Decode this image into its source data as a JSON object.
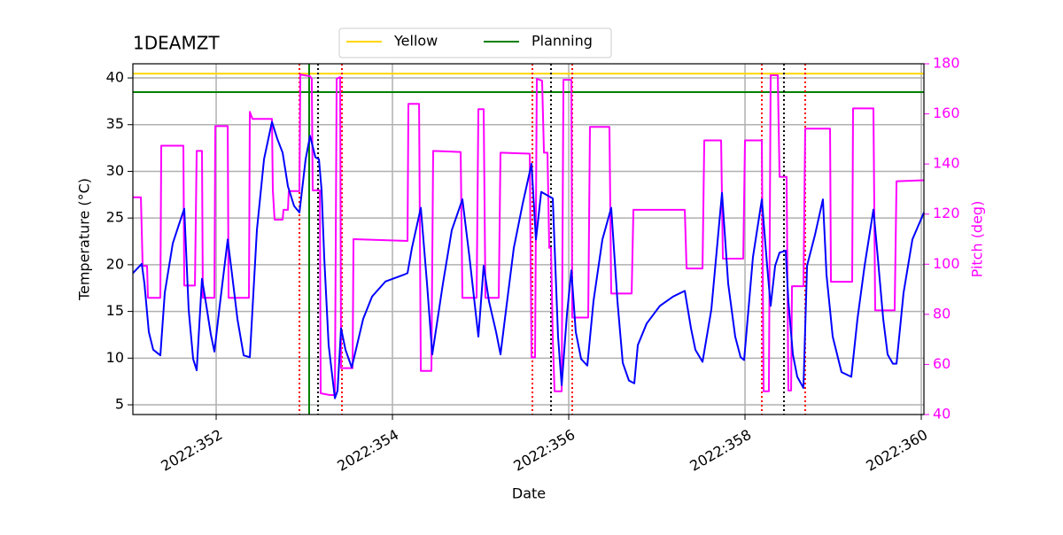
{
  "chart_data": {
    "type": "line",
    "title": "1DEAMZT",
    "x_label": "Date",
    "y_label": "Temperature (°C)",
    "y2_label": "Pitch (deg)",
    "y2_color": "#ff00ff",
    "xlim": [
      351.055,
      360.03
    ],
    "ylim": [
      3.96,
      41.52
    ],
    "y2lim": [
      40,
      180
    ],
    "xticks": [
      {
        "value": 352,
        "label": "2022:352"
      },
      {
        "value": 354,
        "label": "2022:354"
      },
      {
        "value": 356,
        "label": "2022:356"
      },
      {
        "value": 358,
        "label": "2022:358"
      },
      {
        "value": 360,
        "label": "2022:360"
      }
    ],
    "yticks": [
      5,
      10,
      15,
      20,
      25,
      30,
      35,
      40
    ],
    "y2ticks": [
      40,
      60,
      80,
      100,
      120,
      140,
      160,
      180
    ],
    "grid": true,
    "legend": "upper center",
    "hlines": [
      {
        "name": "Yellow",
        "color": "#ffd700",
        "value": 40.47
      },
      {
        "name": "Planning",
        "color": "#008000",
        "value": 38.48
      }
    ],
    "vlines": [
      {
        "color": "#ff0000",
        "style": "dotted",
        "x": [
          352.945,
          353.427,
          355.588,
          356.04,
          358.191,
          358.683
        ]
      },
      {
        "color": "#000000",
        "style": "dotted",
        "x": [
          353.156,
          355.799,
          358.442
        ]
      },
      {
        "color": "#008000",
        "style": "solid",
        "x": [
          353.055
        ]
      }
    ],
    "series": [
      {
        "color": "#ff00ff",
        "axis": "y2",
        "x": [
          351.055,
          351.146,
          351.166,
          351.216,
          351.226,
          351.367,
          351.377,
          351.628,
          351.638,
          351.759,
          351.779,
          351.839,
          351.849,
          351.98,
          351.99,
          352.131,
          352.141,
          352.372,
          352.382,
          352.412,
          352.442,
          352.633,
          352.643,
          352.663,
          352.754,
          352.764,
          352.814,
          352.824,
          352.945,
          352.955,
          353.065,
          353.085,
          353.095,
          353.176,
          353.186,
          353.286,
          353.347,
          353.367,
          353.407,
          353.417,
          353.548,
          353.558,
          354.171,
          354.181,
          354.302,
          354.322,
          354.442,
          354.462,
          354.774,
          354.794,
          354.955,
          354.975,
          355.035,
          355.055,
          355.206,
          355.226,
          355.558,
          355.578,
          355.618,
          355.638,
          355.698,
          355.719,
          355.759,
          355.779,
          355.799,
          355.819,
          355.839,
          355.92,
          355.94,
          356.03,
          356.04,
          356.221,
          356.241,
          356.462,
          356.482,
          356.714,
          356.734,
          357.317,
          357.337,
          357.518,
          357.538,
          357.729,
          357.749,
          357.98,
          358.0,
          358.191,
          358.211,
          358.271,
          358.291,
          358.372,
          358.392,
          358.472,
          358.492,
          358.523,
          358.533,
          358.663,
          358.683,
          358.965,
          358.975,
          359.216,
          359.226,
          359.457,
          359.477,
          359.698,
          359.719,
          360.03
        ],
        "values": [
          126.7,
          126.7,
          99.3,
          99.3,
          86.6,
          86.6,
          147.3,
          147.3,
          91.5,
          91.5,
          145.2,
          145.2,
          86.6,
          86.6,
          155.1,
          155.1,
          86.6,
          86.6,
          160.8,
          158.0,
          158.0,
          158.0,
          129.5,
          117.8,
          117.8,
          121.7,
          121.7,
          129.2,
          129.2,
          175.7,
          175.0,
          174.0,
          129.5,
          129.5,
          48.5,
          47.8,
          47.8,
          174.0,
          174.7,
          58.5,
          58.5,
          110.0,
          109.3,
          164.0,
          164.0,
          57.4,
          57.4,
          145.2,
          144.8,
          86.6,
          86.6,
          161.9,
          161.9,
          86.6,
          86.6,
          144.5,
          144.1,
          62.8,
          62.8,
          174.0,
          173.2,
          144.5,
          144.5,
          106.5,
          106.5,
          70.9,
          49.3,
          49.3,
          173.6,
          173.6,
          78.7,
          78.7,
          154.8,
          154.8,
          88.3,
          88.3,
          121.7,
          121.7,
          98.3,
          98.3,
          149.4,
          149.4,
          102.2,
          102.2,
          149.4,
          149.4,
          49.3,
          49.3,
          175.4,
          175.4,
          134.9,
          134.9,
          49.6,
          49.6,
          91.2,
          91.2,
          154.1,
          154.1,
          93.0,
          93.0,
          162.2,
          162.2,
          81.6,
          81.6,
          133.1,
          133.5
        ]
      },
      {
        "color": "#0000ff",
        "axis": "y",
        "x": [
          351.055,
          351.156,
          351.186,
          351.236,
          351.286,
          351.367,
          351.417,
          351.508,
          351.588,
          351.638,
          351.688,
          351.739,
          351.779,
          351.839,
          351.889,
          351.94,
          351.98,
          352.04,
          352.131,
          352.181,
          352.241,
          352.312,
          352.382,
          352.462,
          352.543,
          352.633,
          352.693,
          352.754,
          352.814,
          352.884,
          352.945,
          353.015,
          353.065,
          353.126,
          353.166,
          353.196,
          353.226,
          353.276,
          353.347,
          353.377,
          353.417,
          353.467,
          353.538,
          353.668,
          353.769,
          353.92,
          354.121,
          354.171,
          354.221,
          354.322,
          354.392,
          354.452,
          354.573,
          354.673,
          354.794,
          354.874,
          354.975,
          355.035,
          355.095,
          355.176,
          355.226,
          355.276,
          355.377,
          355.477,
          355.578,
          355.628,
          355.688,
          355.819,
          355.879,
          355.92,
          355.98,
          356.03,
          356.08,
          356.141,
          356.211,
          356.281,
          356.382,
          356.482,
          356.553,
          356.613,
          356.683,
          356.744,
          356.784,
          356.884,
          357.035,
          357.186,
          357.317,
          357.387,
          357.437,
          357.518,
          357.618,
          357.739,
          357.809,
          357.889,
          357.95,
          357.99,
          358.09,
          358.191,
          358.251,
          358.291,
          358.342,
          358.392,
          358.462,
          358.492,
          358.543,
          358.593,
          358.663,
          358.704,
          358.794,
          358.884,
          358.925,
          358.995,
          359.095,
          359.206,
          359.276,
          359.357,
          359.457,
          359.497,
          359.568,
          359.618,
          359.678,
          359.719,
          359.799,
          359.899,
          360.03
        ],
        "values": [
          19.1,
          20.1,
          18.0,
          12.8,
          10.9,
          10.3,
          17.0,
          22.3,
          24.6,
          26.0,
          15.2,
          9.9,
          8.7,
          18.5,
          15.6,
          12.5,
          10.7,
          15.6,
          22.7,
          18.9,
          14.2,
          10.3,
          10.1,
          23.7,
          31.3,
          35.3,
          33.5,
          32.0,
          28.4,
          26.3,
          25.6,
          31.3,
          33.8,
          31.5,
          31.3,
          28.0,
          20.8,
          11.4,
          5.7,
          6.5,
          13.2,
          10.9,
          9.0,
          14.2,
          16.6,
          18.2,
          18.9,
          19.1,
          21.8,
          26.1,
          18.0,
          10.4,
          18.0,
          23.7,
          27.0,
          20.8,
          12.3,
          19.9,
          16.1,
          12.8,
          10.4,
          14.2,
          21.8,
          26.5,
          30.8,
          22.7,
          27.8,
          27.1,
          12.3,
          7.1,
          14.7,
          19.4,
          12.8,
          9.9,
          9.2,
          16.1,
          22.7,
          26.1,
          16.1,
          9.5,
          7.6,
          7.3,
          11.4,
          13.7,
          15.6,
          16.6,
          17.2,
          13.2,
          10.9,
          9.6,
          15.2,
          27.7,
          18.0,
          12.3,
          10.1,
          9.8,
          20.8,
          27.0,
          19.9,
          15.6,
          19.9,
          21.3,
          21.5,
          16.1,
          10.4,
          8.0,
          6.8,
          19.9,
          23.2,
          27.0,
          18.9,
          12.3,
          8.5,
          8.0,
          14.2,
          19.9,
          25.9,
          21.8,
          14.2,
          10.4,
          9.4,
          9.4,
          17.0,
          22.7,
          25.6
        ]
      }
    ]
  }
}
